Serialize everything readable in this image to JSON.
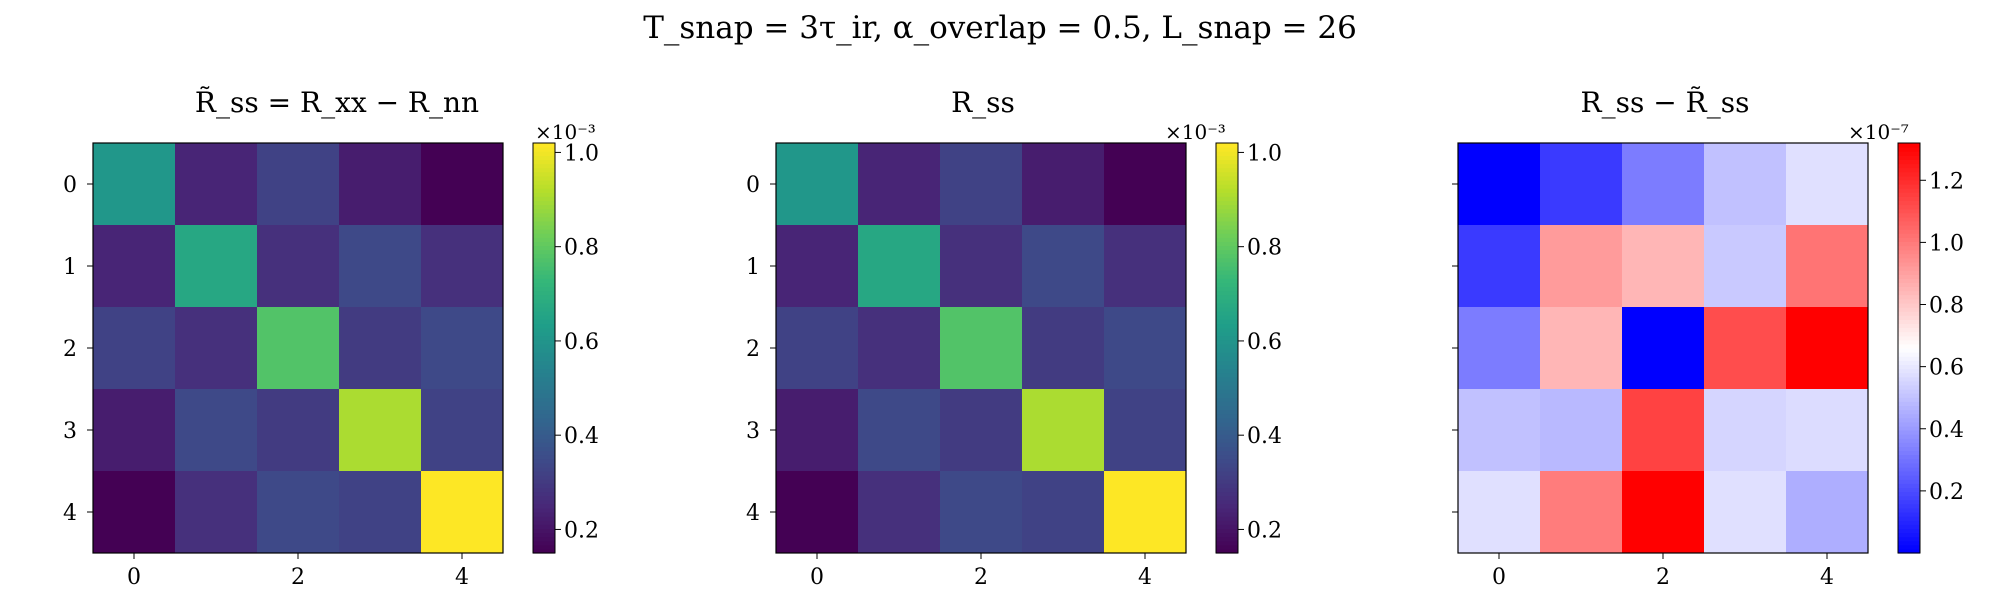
{
  "suptitle": "T_snap = 3τ_ir,   α_overlap = 0.5,   L_snap = 26",
  "panels": [
    {
      "title": "R̃_ss = R_xx − R_nn",
      "colorbar": {
        "exponent_label": "×10⁻³",
        "ticks": [
          "0.2",
          "0.4",
          "0.6",
          "0.8",
          "1.0"
        ],
        "tick_values": [
          0.2,
          0.4,
          0.6,
          0.8,
          1.0
        ]
      }
    },
    {
      "title": "R_ss",
      "colorbar": {
        "exponent_label": "×10⁻³",
        "ticks": [
          "0.2",
          "0.4",
          "0.6",
          "0.8",
          "1.0"
        ],
        "tick_values": [
          0.2,
          0.4,
          0.6,
          0.8,
          1.0
        ]
      }
    },
    {
      "title": "R_ss − R̃_ss",
      "colorbar": {
        "exponent_label": "×10⁻⁷",
        "ticks": [
          "0.2",
          "0.4",
          "0.6",
          "0.8",
          "1.0",
          "1.2"
        ],
        "tick_values": [
          0.2,
          0.4,
          0.6,
          0.8,
          1.0,
          1.2
        ]
      }
    }
  ],
  "chart_data": [
    {
      "type": "heatmap",
      "title": "R̃_ss = R_xx − R_nn",
      "colormap": "viridis",
      "scale": "1e-3",
      "vmin": 0.15,
      "vmax": 1.02,
      "x_ticks": [
        "0",
        "2",
        "4"
      ],
      "y_ticks": [
        "0",
        "1",
        "2",
        "3",
        "4"
      ],
      "values": [
        [
          0.61,
          0.24,
          0.32,
          0.22,
          0.15
        ],
        [
          0.24,
          0.67,
          0.27,
          0.34,
          0.27
        ],
        [
          0.32,
          0.27,
          0.78,
          0.3,
          0.34
        ],
        [
          0.22,
          0.34,
          0.3,
          0.91,
          0.32
        ],
        [
          0.15,
          0.27,
          0.34,
          0.32,
          1.02
        ]
      ]
    },
    {
      "type": "heatmap",
      "title": "R_ss",
      "colormap": "viridis",
      "scale": "1e-3",
      "vmin": 0.15,
      "vmax": 1.02,
      "x_ticks": [
        "0",
        "2",
        "4"
      ],
      "y_ticks": [
        "0",
        "1",
        "2",
        "3",
        "4"
      ],
      "values": [
        [
          0.61,
          0.24,
          0.32,
          0.22,
          0.15
        ],
        [
          0.24,
          0.67,
          0.27,
          0.34,
          0.27
        ],
        [
          0.32,
          0.27,
          0.78,
          0.3,
          0.34
        ],
        [
          0.22,
          0.34,
          0.3,
          0.91,
          0.32
        ],
        [
          0.15,
          0.27,
          0.34,
          0.32,
          1.02
        ]
      ]
    },
    {
      "type": "heatmap",
      "title": "R_ss − R̃_ss",
      "colormap": "bwr",
      "scale": "1e-7",
      "vmin": 0.0,
      "vmax": 1.32,
      "x_ticks": [
        "0",
        "2",
        "4"
      ],
      "y_ticks": [],
      "values": [
        [
          0.0,
          0.15,
          0.32,
          0.5,
          0.58
        ],
        [
          0.15,
          0.92,
          0.85,
          0.52,
          1.02
        ],
        [
          0.32,
          0.85,
          0.0,
          1.12,
          1.32
        ],
        [
          0.5,
          0.48,
          1.15,
          0.55,
          0.57
        ],
        [
          0.58,
          1.0,
          1.32,
          0.58,
          0.45
        ]
      ]
    }
  ]
}
